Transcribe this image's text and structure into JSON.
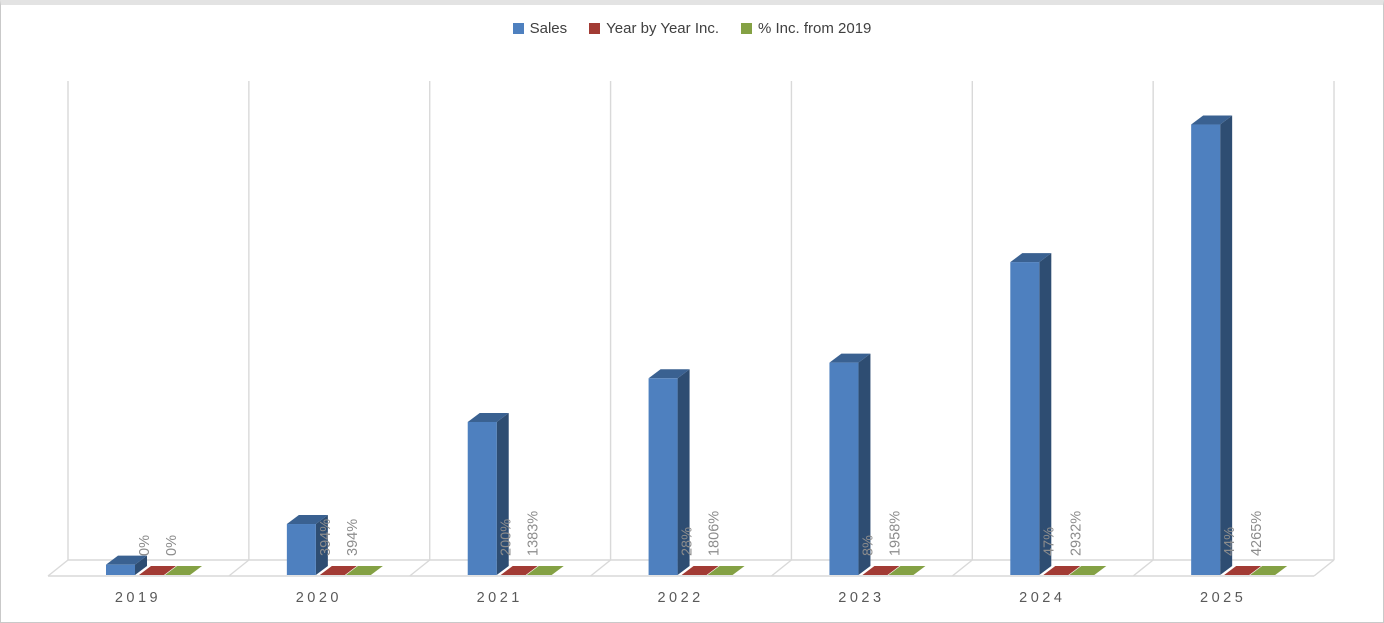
{
  "chart_data": {
    "type": "bar",
    "variant": "3d-clustered-column",
    "title": "",
    "xlabel": "",
    "ylabel": "",
    "value_axis_visible": false,
    "legend_position": "top",
    "categories": [
      "2019",
      "2020",
      "2021",
      "2022",
      "2023",
      "2024",
      "2025"
    ],
    "series": [
      {
        "name": "Sales",
        "color": "#4e80bf",
        "color_side": "#2e4d72",
        "color_top": "#3a6191",
        "values_basis": "no value axis shown; relative heights derived from the '% Inc. from 2019' data labels with 2019 = 100",
        "relative_values": [
          100,
          494,
          1483,
          1906,
          2058,
          3032,
          4365
        ],
        "data_labels": [
          "",
          "",
          "",
          "",
          "",
          "",
          ""
        ]
      },
      {
        "name": "Year by Year Inc.",
        "color": "#a23b34",
        "rendering": "flat on floor (negligible height vs Sales scale)",
        "values_pct": [
          0,
          394,
          200,
          28,
          8,
          47,
          44
        ],
        "data_labels": [
          "0%",
          "394%",
          "200%",
          "28%",
          "8%",
          "47%",
          "44%"
        ]
      },
      {
        "name": "% Inc. from 2019",
        "color": "#84a144",
        "rendering": "flat on floor (negligible height vs Sales scale)",
        "values_pct": [
          0,
          394,
          1383,
          1806,
          1958,
          2932,
          4265
        ],
        "data_labels": [
          "0%",
          "394%",
          "1383%",
          "1806%",
          "1958%",
          "2932%",
          "4265%"
        ]
      }
    ],
    "colors": {
      "wall_lines": "#d9d9d9",
      "data_label_text": "#8c8c8c",
      "category_label_text": "#595959",
      "legend_text": "#404040",
      "background": "#ffffff"
    },
    "layout_hints": {
      "gridlines": "vertical category separators on 3d back wall with floor bevels",
      "data_label_rotation": "90deg counterclockwise"
    }
  }
}
